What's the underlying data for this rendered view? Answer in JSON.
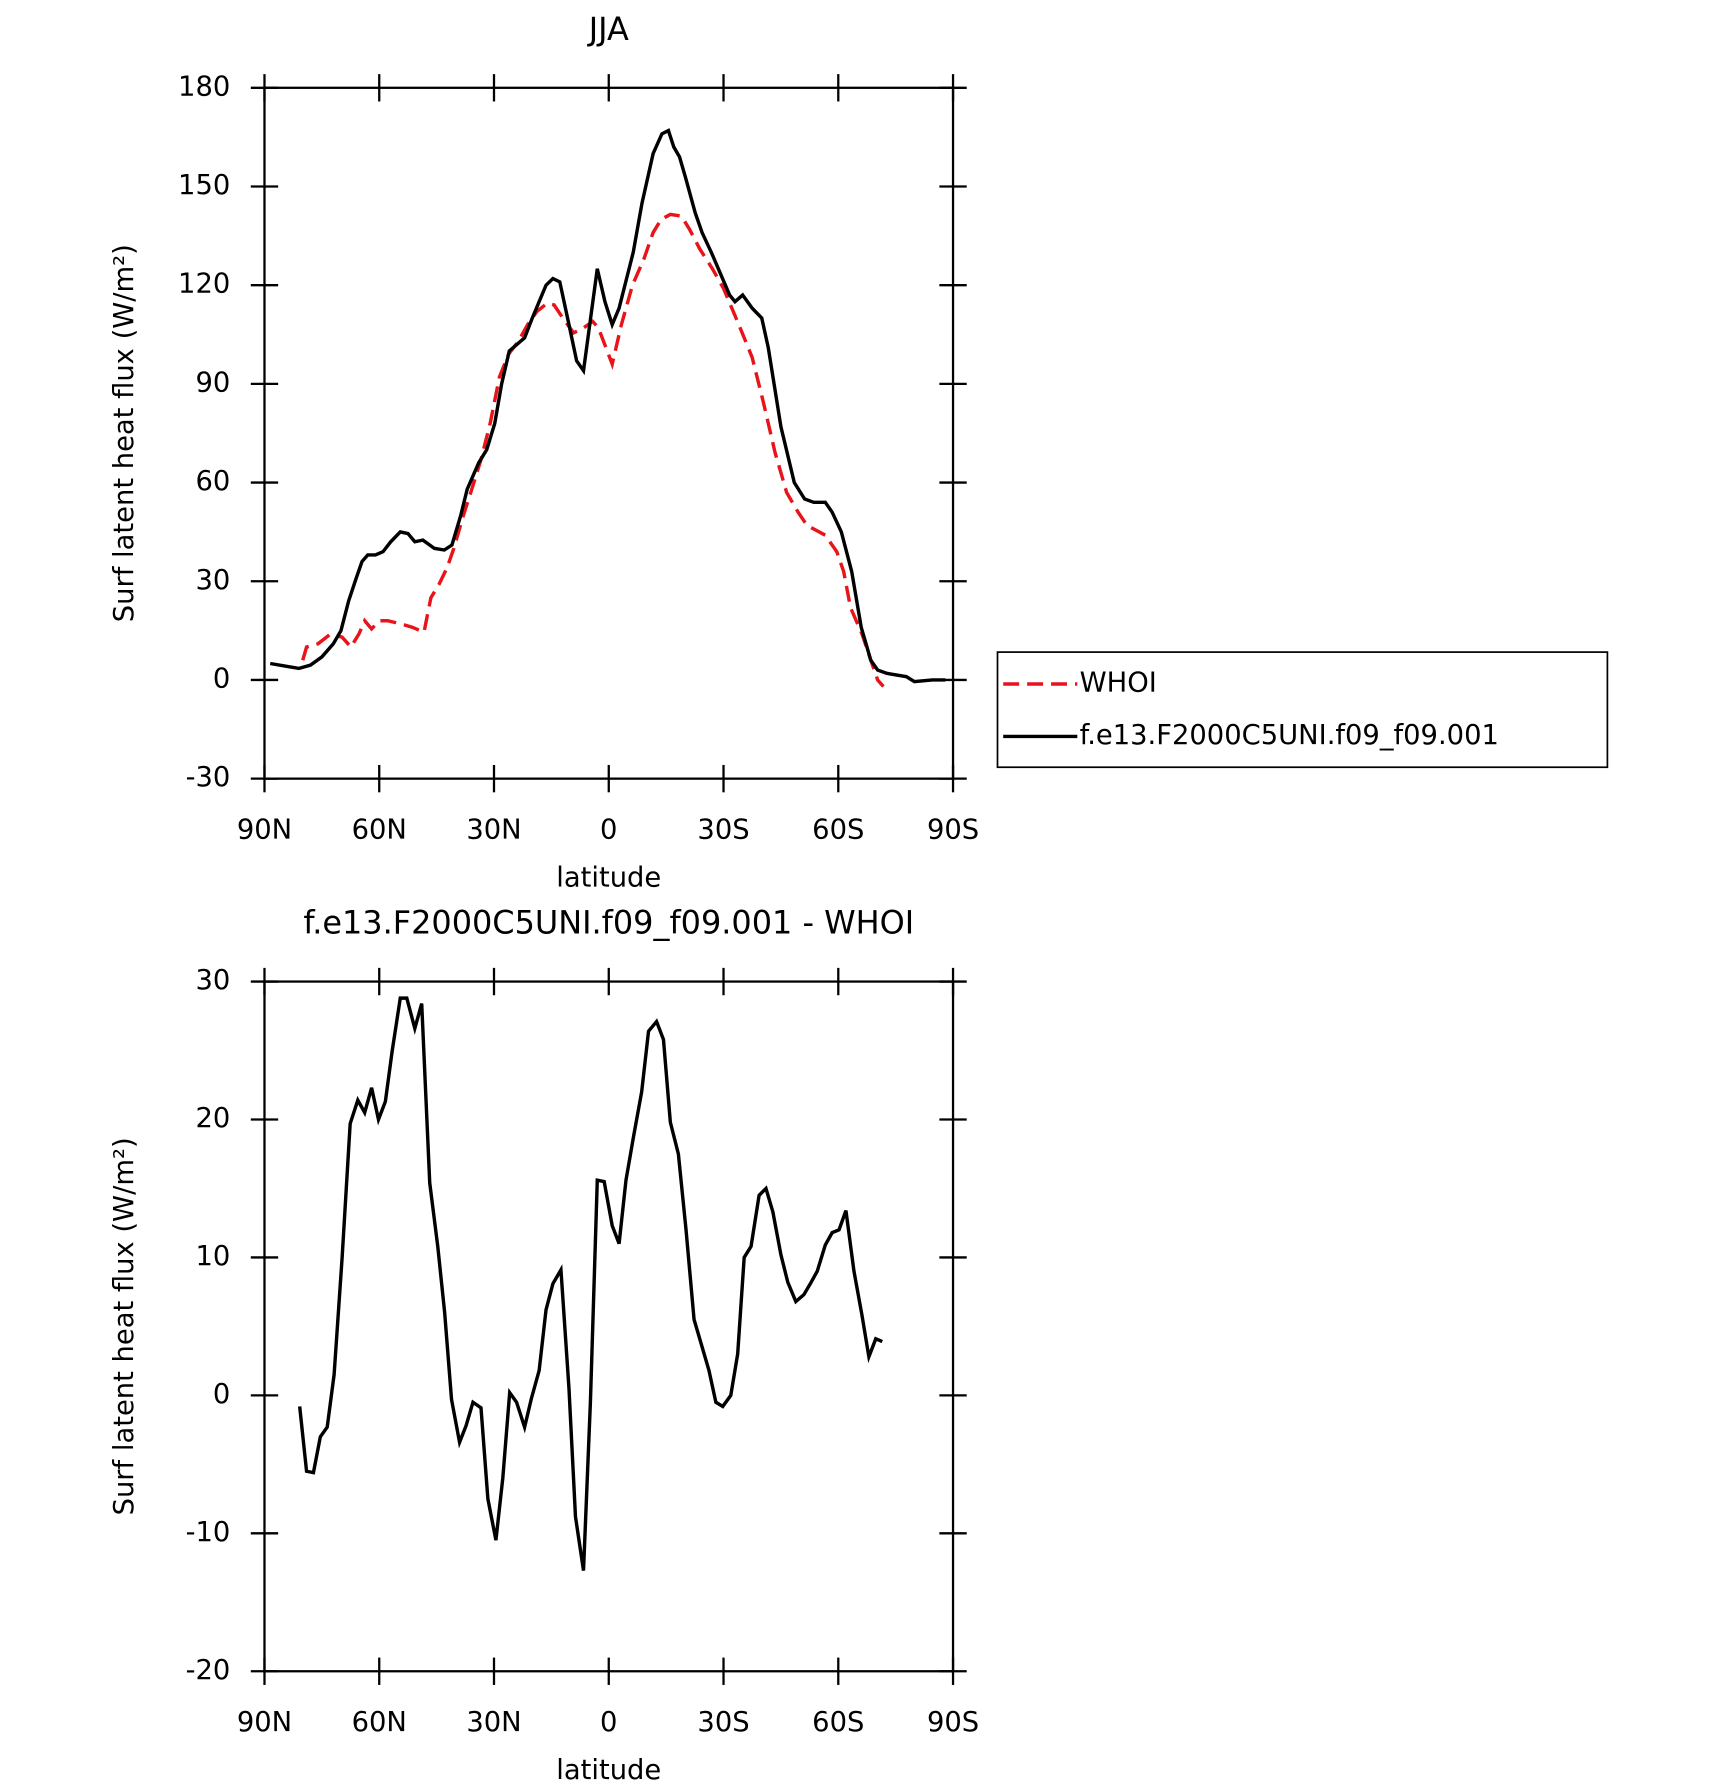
{
  "chart_data": [
    {
      "type": "line",
      "title": "JJA",
      "xlabel": "latitude",
      "ylabel": "Surf latent heat flux (W/m²)",
      "xlim": [
        90,
        -90
      ],
      "xticks": [
        {
          "value": 90,
          "label": "90N"
        },
        {
          "value": 60,
          "label": "60N"
        },
        {
          "value": 30,
          "label": "30N"
        },
        0,
        {
          "value": -30,
          "label": "30S"
        },
        {
          "value": -60,
          "label": "60S"
        },
        {
          "value": -90,
          "label": "90S"
        }
      ],
      "ylim": [
        -30,
        180
      ],
      "yticks": [
        -30,
        0,
        30,
        60,
        90,
        120,
        150,
        180
      ],
      "legend": "right",
      "series": [
        {
          "name": "WHOI",
          "color": "#e8141a",
          "dash": true,
          "x": [
            80,
            79,
            76,
            72.7,
            69.7,
            67.4,
            65.3,
            63.8,
            62,
            60,
            57.8,
            54.2,
            51.3,
            48.3,
            46.5,
            44.4,
            42.3,
            40.5,
            38,
            35.8,
            33.4,
            31,
            28.6,
            26.2,
            23.6,
            21.2,
            18.8,
            16.1,
            14.3,
            12,
            9.2,
            6.6,
            4.2,
            2.7,
            -0.9,
            -3.3,
            -6.2,
            -9.2,
            -11.6,
            -13.7,
            -16.1,
            -19,
            -21.1,
            -23.8,
            -27.1,
            -30,
            -34,
            -37.5,
            -40.5,
            -43.5,
            -46.5,
            -49.5,
            -51.8,
            -54.2,
            -56.6,
            -59.6,
            -61.4,
            -63.2,
            -66.2,
            -68.5,
            -70.3,
            -71.8
          ],
          "values": [
            6,
            10,
            11,
            14,
            13,
            10,
            14,
            18,
            15.5,
            18,
            18,
            17,
            16,
            14.5,
            25,
            29,
            34,
            40,
            50,
            58,
            67,
            78,
            92,
            99,
            103,
            108,
            112,
            114.5,
            114,
            110,
            105.5,
            107,
            109,
            107,
            96,
            108,
            120,
            128,
            136,
            140,
            141.5,
            141,
            137,
            131,
            125,
            119,
            108,
            98,
            84,
            69,
            57,
            51,
            47,
            45.5,
            44,
            39,
            33,
            22,
            14,
            6,
            0,
            -2
          ]
        },
        {
          "name": "f.e13.F2000C5UNI.f09_f09.001",
          "color": "#000000",
          "dash": false,
          "x": [
            88.5,
            85,
            81,
            78,
            75,
            72,
            70,
            68,
            66,
            64.5,
            63,
            61,
            59,
            57,
            54.5,
            52.5,
            50.7,
            48.6,
            45.6,
            43,
            41,
            38.7,
            37,
            34,
            31.9,
            29.8,
            28,
            26,
            22,
            20,
            16.4,
            14.6,
            12.8,
            10.4,
            8.4,
            6.6,
            3,
            1,
            -0.9,
            -2.7,
            -6.4,
            -8.7,
            -11.6,
            -13.9,
            -15.6,
            -17,
            -18.5,
            -20,
            -22.6,
            -24.4,
            -26.8,
            -31.6,
            -33,
            -35,
            -37.5,
            -40,
            -41.7,
            -45,
            -48.5,
            -51.2,
            -53.6,
            -56.6,
            -58.4,
            -60.8,
            -63.5,
            -66,
            -68.5,
            -70.3,
            -72.7,
            -77.8,
            -79.9,
            -84.6,
            -88
          ],
          "values": [
            5,
            4.3,
            3.5,
            4.5,
            7,
            11,
            15,
            24,
            31,
            36,
            38,
            38,
            39,
            42,
            45,
            44.5,
            42,
            42.5,
            40,
            39.5,
            41,
            50,
            58,
            66,
            70,
            78,
            90,
            100,
            104,
            110,
            120,
            122,
            121,
            108,
            97,
            94,
            125,
            115,
            108,
            113,
            130,
            145,
            160,
            166,
            167,
            162,
            159,
            153,
            142,
            136,
            130,
            117,
            115,
            117,
            113,
            110,
            101,
            77,
            60,
            55,
            54,
            54,
            51,
            45,
            33,
            16,
            6,
            3,
            2,
            1,
            -0.5,
            0,
            0
          ]
        }
      ]
    },
    {
      "type": "line",
      "title": "f.e13.F2000C5UNI.f09_f09.001 - WHOI",
      "xlabel": "latitude",
      "ylabel": "Surf latent heat flux (W/m²)",
      "xlim": [
        90,
        -90
      ],
      "xticks": [
        {
          "value": 90,
          "label": "90N"
        },
        {
          "value": 60,
          "label": "60N"
        },
        {
          "value": 30,
          "label": "30N"
        },
        0,
        {
          "value": -30,
          "label": "30S"
        },
        {
          "value": -60,
          "label": "60S"
        },
        {
          "value": -90,
          "label": "90S"
        }
      ],
      "ylim": [
        -20,
        30
      ],
      "yticks": [
        -20,
        -10,
        0,
        10,
        20,
        30
      ],
      "series": [
        {
          "color": "#000000",
          "dash": false,
          "x": [
            80.8,
            79,
            77.2,
            75.4,
            73.6,
            71.8,
            69.7,
            67.6,
            65.6,
            63.8,
            62,
            60.2,
            58.4,
            56.6,
            54.5,
            52.8,
            50.7,
            48.9,
            46.8,
            44.7,
            42.9,
            41.1,
            39,
            37.3,
            35.5,
            33.4,
            31.6,
            29.5,
            27.7,
            25.9,
            24.1,
            22,
            20.2,
            18.2,
            16.4,
            14.6,
            12.5,
            10.4,
            8.7,
            6.6,
            4.8,
            3,
            1.2,
            -0.9,
            -2.7,
            -4.5,
            -6.5,
            -8.6,
            -10.4,
            -12.5,
            -14.3,
            -16.1,
            -18.2,
            -20.2,
            -22.3,
            -24.1,
            -26.2,
            -28,
            -29.8,
            -31.9,
            -33.7,
            -35.4,
            -37.2,
            -39.3,
            -41.1,
            -42.9,
            -45,
            -46.8,
            -48.9,
            -51,
            -52.7,
            -54.5,
            -56.6,
            -58.4,
            -60.2,
            -62,
            -64.1,
            -66.2,
            -68,
            -69.8,
            -71.5
          ],
          "values": [
            -0.8,
            -5.5,
            -5.6,
            -3,
            -2.3,
            1.5,
            10,
            19.7,
            21.4,
            20.5,
            22.3,
            20,
            21.3,
            25,
            28.8,
            28.8,
            26.6,
            28.4,
            15.4,
            10.8,
            6,
            -0.3,
            -3.4,
            -2.2,
            -0.5,
            -0.9,
            -7.5,
            -10.5,
            -6,
            0.2,
            -0.5,
            -2.3,
            -0.2,
            1.8,
            6.2,
            8.1,
            9.1,
            0.5,
            -8.8,
            -12.7,
            -0.5,
            15.6,
            15.5,
            12.3,
            11,
            15.6,
            18.8,
            22,
            26.4,
            27.1,
            25.8,
            19.8,
            17.5,
            12,
            5.5,
            3.8,
            1.8,
            -0.5,
            -0.8,
            0,
            3,
            10,
            10.8,
            14.5,
            15,
            13.3,
            10.2,
            8.2,
            6.8,
            7.3,
            8.1,
            9,
            10.9,
            11.8,
            12,
            13.4,
            9,
            5.8,
            2.8,
            4.1,
            3.9
          ]
        }
      ]
    }
  ]
}
